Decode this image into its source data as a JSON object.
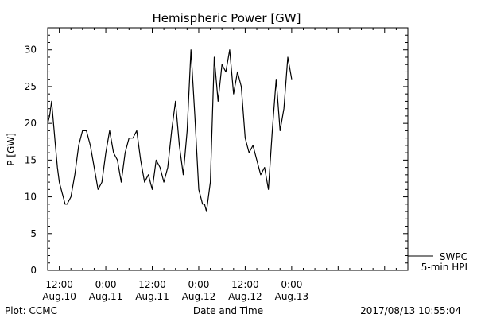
{
  "chart_data": {
    "type": "line",
    "title": "Hemispheric Power [GW]",
    "ylabel": "P [GW]",
    "xlabel": "Date and Time",
    "ylim": [
      0,
      33
    ],
    "xlim": [
      "2017-08-10 09:00",
      "2017-08-14 06:00"
    ],
    "grid": false,
    "x_ticks": [
      {
        "time": "2017-08-10 12:00",
        "line1": "12:00",
        "line2": "Aug.10"
      },
      {
        "time": "2017-08-11 00:00",
        "line1": "0:00",
        "line2": "Aug.11"
      },
      {
        "time": "2017-08-11 12:00",
        "line1": "12:00",
        "line2": "Aug.11"
      },
      {
        "time": "2017-08-12 00:00",
        "line1": "0:00",
        "line2": "Aug.12"
      },
      {
        "time": "2017-08-12 12:00",
        "line1": "12:00",
        "line2": "Aug.12"
      },
      {
        "time": "2017-08-13 00:00",
        "line1": "0:00",
        "line2": "Aug.13"
      }
    ],
    "y_ticks": [
      0,
      5,
      10,
      15,
      20,
      25,
      30
    ],
    "series": [
      {
        "name": "SWPC 5-min HPI",
        "color": "#000000",
        "x": [
          "2017-08-10 09:00",
          "2017-08-10 09:30",
          "2017-08-10 10:00",
          "2017-08-10 10:30",
          "2017-08-10 11:00",
          "2017-08-10 11:30",
          "2017-08-10 12:00",
          "2017-08-10 12:30",
          "2017-08-10 13:00",
          "2017-08-10 13:30",
          "2017-08-10 14:00",
          "2017-08-10 15:00",
          "2017-08-10 16:00",
          "2017-08-10 17:00",
          "2017-08-10 18:00",
          "2017-08-10 19:00",
          "2017-08-10 20:00",
          "2017-08-10 21:00",
          "2017-08-10 22:00",
          "2017-08-10 23:00",
          "2017-08-11 00:00",
          "2017-08-11 01:00",
          "2017-08-11 02:00",
          "2017-08-11 03:00",
          "2017-08-11 04:00",
          "2017-08-11 05:00",
          "2017-08-11 06:00",
          "2017-08-11 07:00",
          "2017-08-11 08:00",
          "2017-08-11 09:00",
          "2017-08-11 10:00",
          "2017-08-11 11:00",
          "2017-08-11 12:00",
          "2017-08-11 13:00",
          "2017-08-11 14:00",
          "2017-08-11 15:00",
          "2017-08-11 16:00",
          "2017-08-11 17:00",
          "2017-08-11 18:00",
          "2017-08-11 19:00",
          "2017-08-11 20:00",
          "2017-08-11 21:00",
          "2017-08-11 22:00",
          "2017-08-11 23:00",
          "2017-08-12 00:00",
          "2017-08-12 01:00",
          "2017-08-12 01:30",
          "2017-08-12 02:00",
          "2017-08-12 03:00",
          "2017-08-12 04:00",
          "2017-08-12 05:00",
          "2017-08-12 06:00",
          "2017-08-12 07:00",
          "2017-08-12 08:00",
          "2017-08-12 09:00",
          "2017-08-12 10:00",
          "2017-08-12 11:00",
          "2017-08-12 12:00",
          "2017-08-12 13:00",
          "2017-08-12 14:00",
          "2017-08-12 15:00",
          "2017-08-12 16:00",
          "2017-08-12 17:00",
          "2017-08-12 18:00",
          "2017-08-12 19:00",
          "2017-08-12 20:00",
          "2017-08-12 21:00",
          "2017-08-12 22:00",
          "2017-08-12 23:00",
          "2017-08-13 00:00"
        ],
        "y": [
          20,
          21,
          23,
          20,
          17,
          14,
          12,
          11,
          10,
          9,
          9,
          10,
          13,
          17,
          19,
          19,
          17,
          14,
          11,
          12,
          16,
          19,
          16,
          15,
          12,
          16,
          18,
          18,
          19,
          15,
          12,
          13,
          11,
          15,
          14,
          12,
          14,
          19,
          23,
          17,
          13,
          19,
          30,
          21,
          11,
          9,
          9,
          8,
          12,
          29,
          23,
          28,
          27,
          30,
          24,
          27,
          25,
          18,
          16,
          17,
          15,
          13,
          14,
          11,
          19,
          26,
          19,
          22,
          29,
          26
        ]
      }
    ]
  },
  "legend": {
    "line1": "SWPC",
    "line2": "5-min HPI"
  },
  "footer": {
    "left": "Plot: CCMC",
    "right": "2017/08/13 10:55:04"
  }
}
